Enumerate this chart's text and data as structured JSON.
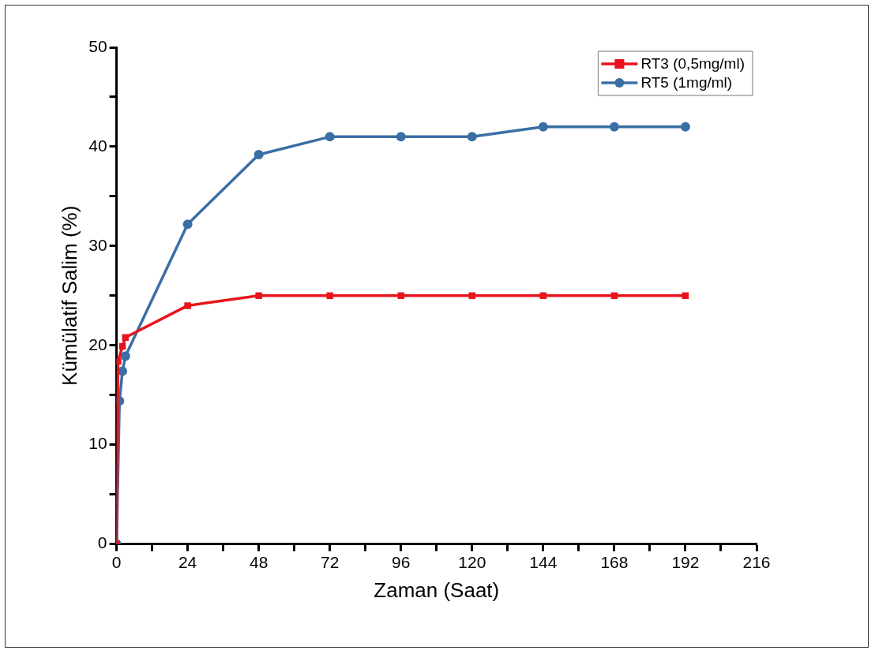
{
  "chart_data": {
    "type": "line",
    "xlabel": "Zaman (Saat)",
    "ylabel": "Kümülatif Salim (%)",
    "xlim": [
      0,
      216
    ],
    "xticks": [
      0,
      {
        "value": 12,
        "label": null
      },
      24,
      {
        "value": 36,
        "label": null
      },
      48,
      {
        "value": 60,
        "label": null
      },
      72,
      {
        "value": 84,
        "label": null
      },
      96,
      {
        "value": 108,
        "label": null
      },
      120,
      {
        "value": 132,
        "label": null
      },
      144,
      {
        "value": 156,
        "label": null
      },
      168,
      {
        "value": 180,
        "label": null
      },
      192,
      {
        "value": 204,
        "label": null
      },
      216
    ],
    "ylim": [
      0,
      50
    ],
    "yticks": [
      0,
      {
        "value": 5,
        "label": null
      },
      10,
      {
        "value": 15,
        "label": null
      },
      20,
      {
        "value": 25,
        "label": null
      },
      30,
      {
        "value": 35,
        "label": null
      },
      40,
      {
        "value": 45,
        "label": null
      },
      50
    ],
    "grid": false,
    "legend": "top right",
    "line_style": "solid",
    "series": [
      {
        "name": "RT3 (0,5mg/ml)",
        "color": "#e8141b",
        "marker": "square",
        "x": [
          0,
          0.5,
          2,
          3,
          24,
          48,
          72,
          96,
          120,
          144,
          168,
          192
        ],
        "values": [
          0,
          18.4,
          19.9,
          20.8,
          24,
          25,
          25,
          25,
          25,
          25,
          25,
          25
        ]
      },
      {
        "name": "RT5 (1mg/ml)",
        "color": "#3a6ea5",
        "marker": "circle",
        "x": [
          0,
          1,
          2,
          3,
          24,
          48,
          72,
          96,
          120,
          144,
          168,
          192
        ],
        "values": [
          0,
          14.4,
          17.4,
          18.9,
          32.2,
          39.2,
          41,
          41,
          41,
          42,
          42,
          42
        ]
      }
    ]
  }
}
